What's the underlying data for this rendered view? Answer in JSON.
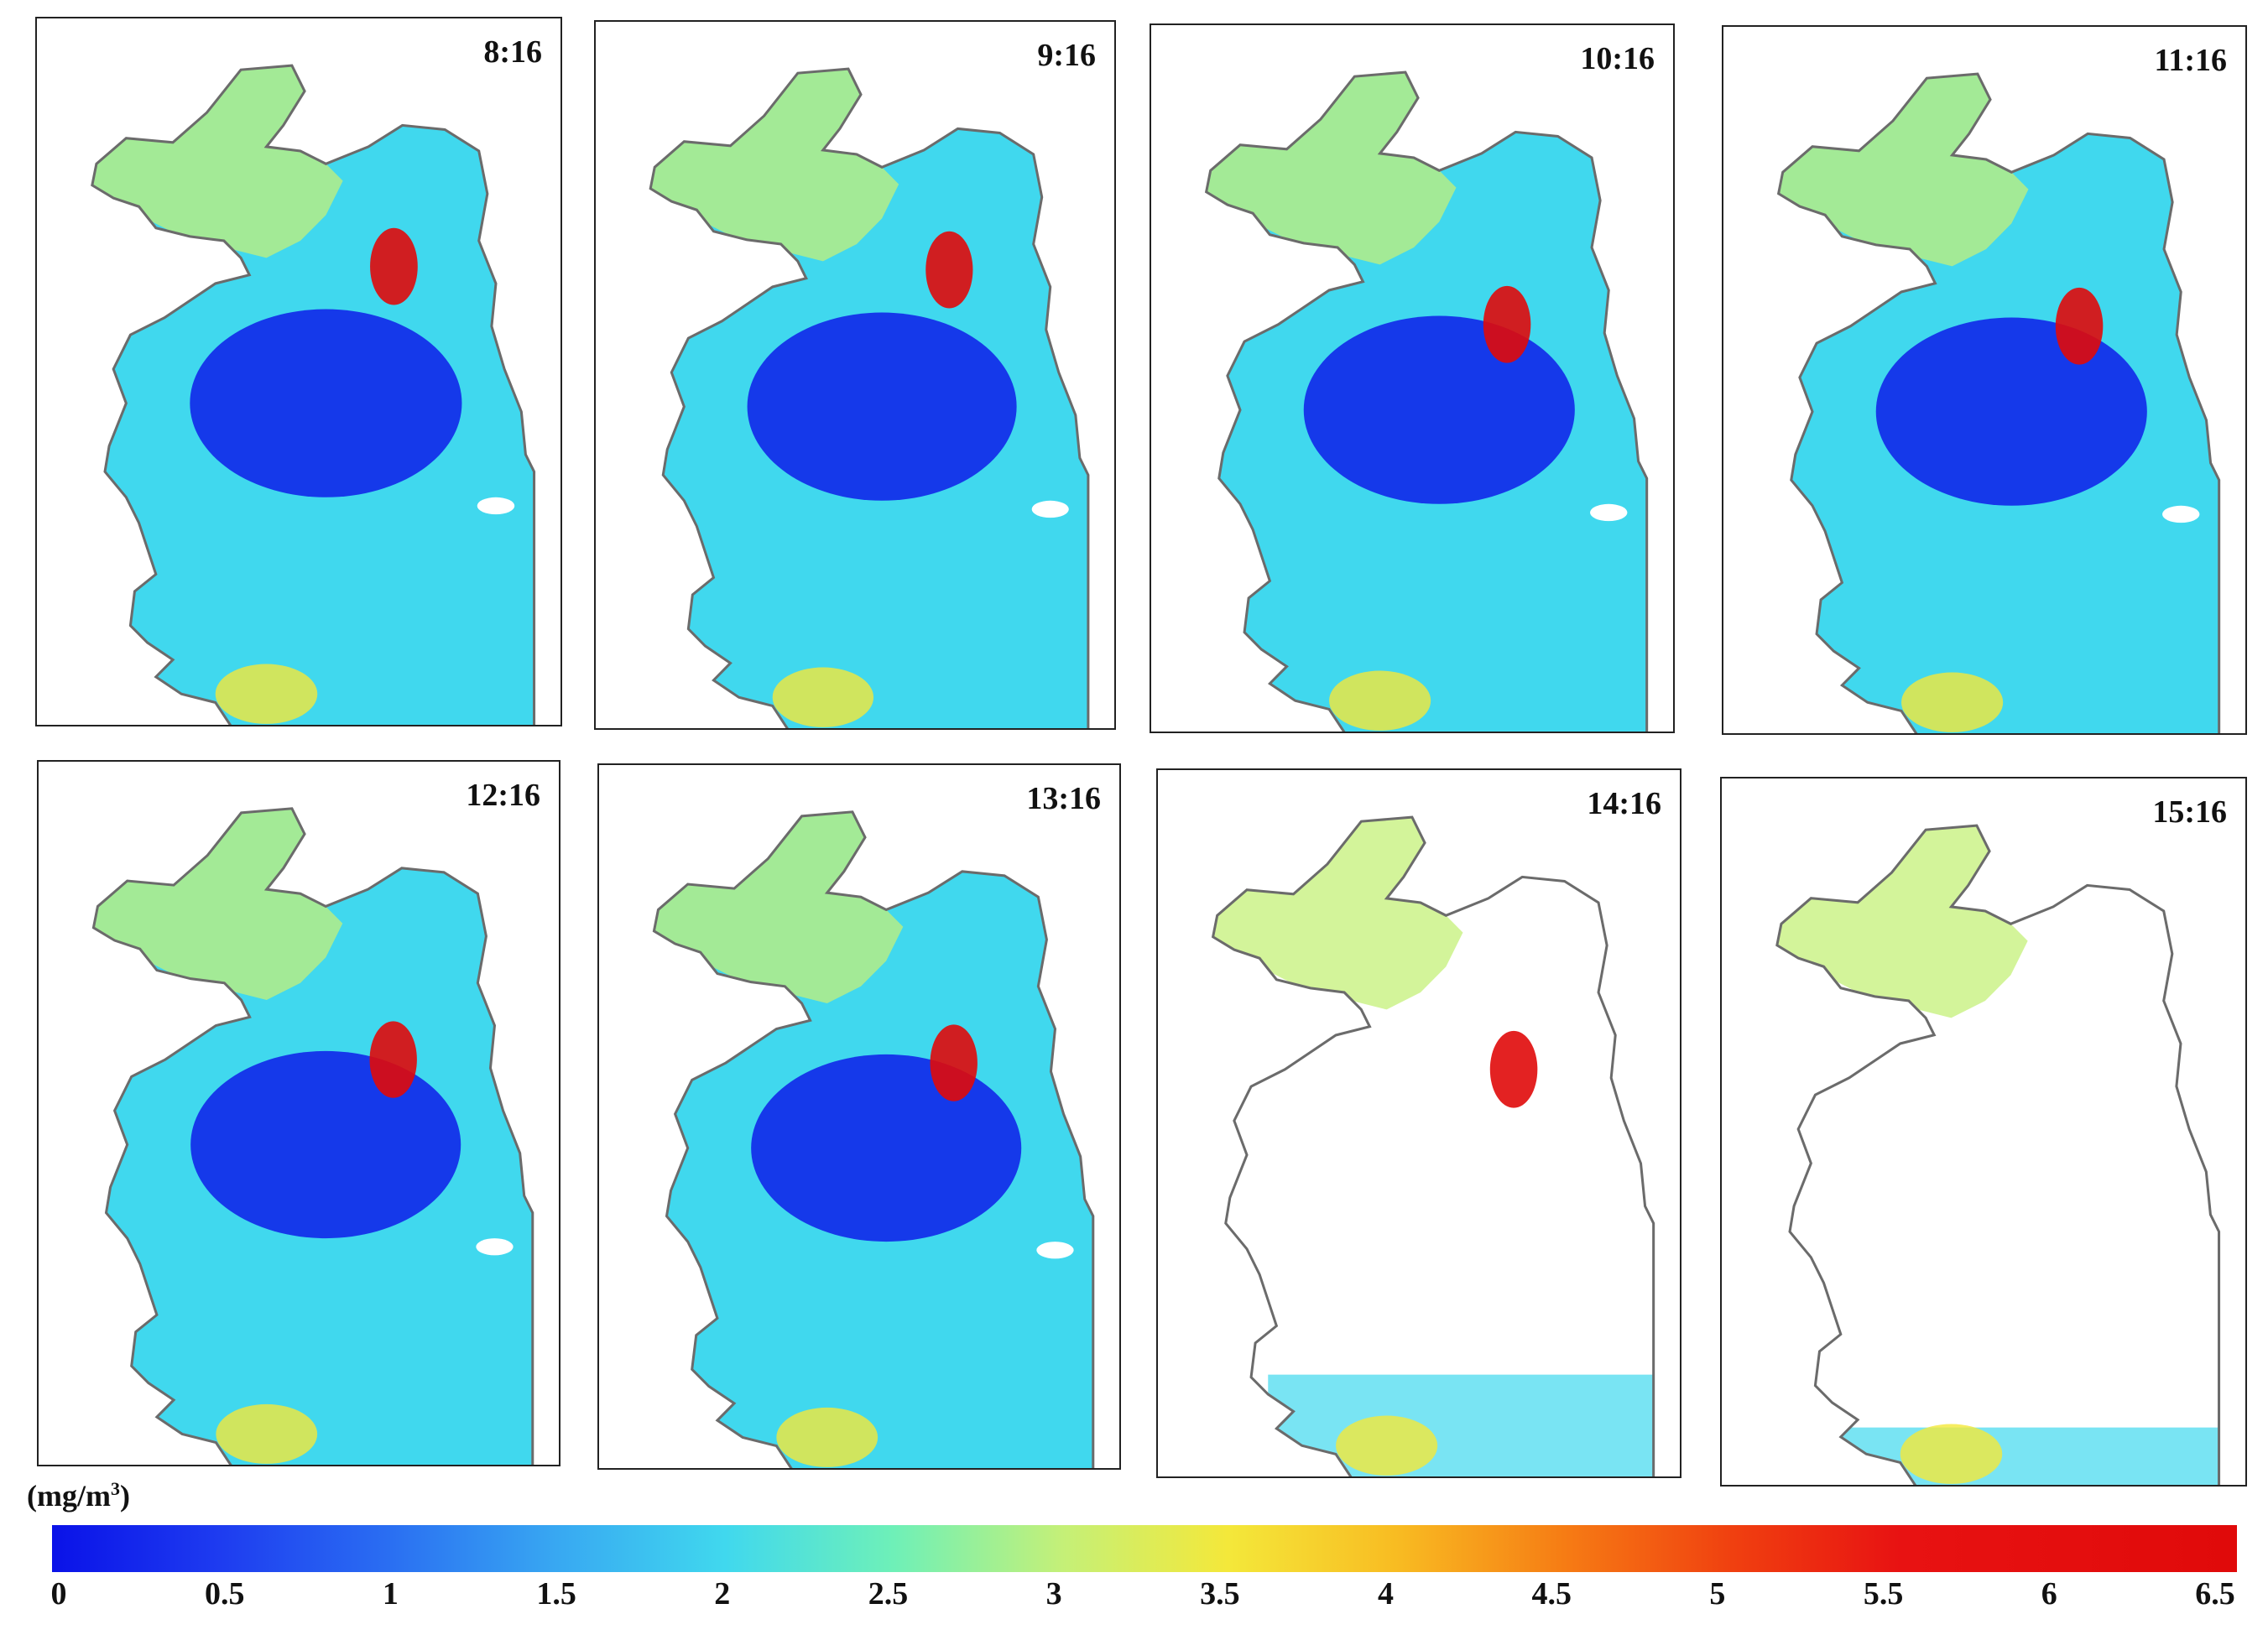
{
  "panels": [
    {
      "time": "8:16"
    },
    {
      "time": "9:16"
    },
    {
      "time": "10:16"
    },
    {
      "time": "11:16"
    },
    {
      "time": "12:16"
    },
    {
      "time": "13:16"
    },
    {
      "time": "14:16"
    },
    {
      "time": "15:16"
    }
  ],
  "colorbar": {
    "unit_prefix": "(mg/m",
    "unit_exp": "3",
    "unit_suffix": ")",
    "ticks": [
      "0",
      "0.5",
      "1",
      "1.5",
      "2",
      "2.5",
      "3",
      "3.5",
      "4",
      "4.5",
      "5",
      "5.5",
      "6",
      "6.5"
    ],
    "tick_values": [
      0,
      0.5,
      1,
      1.5,
      2,
      2.5,
      3,
      3.5,
      4,
      4.5,
      5,
      5.5,
      6,
      6.5
    ],
    "range": [
      0,
      6.5
    ],
    "colors": [
      "#0a12e8",
      "#2a6ef2",
      "#40d8ee",
      "#c4f078",
      "#f4e83a",
      "#f67c14",
      "#e00a0a"
    ]
  },
  "coastline_color": "#6b6b6b"
}
